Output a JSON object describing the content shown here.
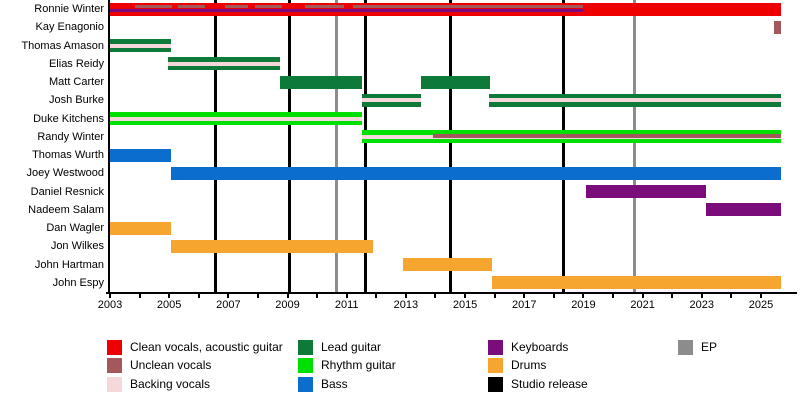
{
  "chart_data": {
    "type": "timeline",
    "description": "Band members timeline chart, roles by color, 2003 to present",
    "x_axis": {
      "start_year": 2003,
      "present_year": 2025.68,
      "tick_step_years": 1,
      "label_years": [
        2003,
        2005,
        2007,
        2009,
        2011,
        2013,
        2015,
        2017,
        2019,
        2021,
        2023,
        2025
      ]
    },
    "colors": {
      "clean": "#ee0000",
      "unclean": "#a3585c",
      "backing": "#f7d8da",
      "lead": "#0d7a3a",
      "rhythm": "#00e000",
      "bass": "#0b6dce",
      "keyboards": "#7a0d7a",
      "drums": "#f6a62f",
      "studio": "#000000",
      "ep": "#8c8c8c"
    },
    "members": [
      {
        "name": "Ronnie Winter",
        "bars": [
          {
            "role": "clean",
            "start": 2003,
            "end": "present",
            "stripes": [
              {
                "role": "keyboards",
                "lane": "middle",
                "segments": [
                  [
                    2003,
                    2019.0
                  ]
                ]
              },
              {
                "role": "unclean",
                "lane": "upper",
                "segments": [
                  [
                    2003.85,
                    2005.1
                  ],
                  [
                    2005.3,
                    2006.2
                  ],
                  [
                    2006.9,
                    2007.65
                  ],
                  [
                    2007.9,
                    2008.8
                  ],
                  [
                    2009.6,
                    2010.9
                  ],
                  [
                    2011.2,
                    2019.0
                  ]
                ]
              }
            ]
          }
        ]
      },
      {
        "name": "Kay Enagonio",
        "bars": [
          {
            "role": "unclean",
            "start": 2025.45,
            "end": "present",
            "stripes": []
          }
        ]
      },
      {
        "name": "Thomas Amason",
        "bars": [
          {
            "role": "lead",
            "start": 2003,
            "end": 2005.05,
            "stripes": [
              {
                "role": "backing",
                "lane": "center",
                "segments": [
                  [
                    2003,
                    2005.05
                  ]
                ]
              }
            ]
          }
        ]
      },
      {
        "name": "Elias Reidy",
        "bars": [
          {
            "role": "lead",
            "start": 2004.95,
            "end": 2008.75,
            "stripes": [
              {
                "role": "backing",
                "lane": "center",
                "segments": [
                  [
                    2004.95,
                    2008.75
                  ]
                ]
              }
            ]
          }
        ]
      },
      {
        "name": "Matt Carter",
        "bars": [
          {
            "role": "lead",
            "start": 2008.75,
            "end": 2011.5,
            "stripes": []
          },
          {
            "role": "lead",
            "start": 2013.5,
            "end": 2015.85,
            "stripes": []
          }
        ]
      },
      {
        "name": "Josh Burke",
        "bars": [
          {
            "role": "lead",
            "start": 2011.5,
            "end": 2013.5,
            "stripes": [
              {
                "role": "backing",
                "lane": "center",
                "segments": [
                  [
                    2011.5,
                    2013.5
                  ]
                ]
              }
            ]
          },
          {
            "role": "lead",
            "start": 2015.8,
            "end": "present",
            "stripes": [
              {
                "role": "backing",
                "lane": "center",
                "segments": [
                  [
                    2015.8,
                    "present"
                  ]
                ]
              }
            ]
          }
        ]
      },
      {
        "name": "Duke Kitchens",
        "bars": [
          {
            "role": "rhythm",
            "start": 2003,
            "end": 2011.5,
            "stripes": [
              {
                "role": "backing",
                "lane": "center",
                "segments": [
                  [
                    2003,
                    2011.5
                  ]
                ]
              }
            ]
          }
        ]
      },
      {
        "name": "Randy Winter",
        "bars": [
          {
            "role": "rhythm",
            "start": 2011.5,
            "end": "present",
            "stripes": [
              {
                "role": "backing",
                "lane": "center",
                "segments": [
                  [
                    2011.5,
                    "present"
                  ]
                ]
              },
              {
                "role": "unclean",
                "lane": "thick",
                "segments": [
                  [
                    2013.9,
                    "present"
                  ]
                ]
              }
            ]
          }
        ]
      },
      {
        "name": "Thomas Wurth",
        "bars": [
          {
            "role": "bass",
            "start": 2003,
            "end": 2005.05,
            "stripes": []
          }
        ]
      },
      {
        "name": "Joey Westwood",
        "bars": [
          {
            "role": "bass",
            "start": 2005.05,
            "end": "present",
            "stripes": []
          }
        ]
      },
      {
        "name": "Daniel Resnick",
        "bars": [
          {
            "role": "keyboards",
            "start": 2019.1,
            "end": 2023.15,
            "stripes": []
          }
        ]
      },
      {
        "name": "Nadeem Salam",
        "bars": [
          {
            "role": "keyboards",
            "start": 2023.15,
            "end": "present",
            "stripes": []
          }
        ]
      },
      {
        "name": "Dan Wagler",
        "bars": [
          {
            "role": "drums",
            "start": 2003,
            "end": 2005.05,
            "stripes": []
          }
        ]
      },
      {
        "name": "Jon Wilkes",
        "bars": [
          {
            "role": "drums",
            "start": 2005.05,
            "end": 2011.9,
            "stripes": []
          }
        ]
      },
      {
        "name": "John Hartman",
        "bars": [
          {
            "role": "drums",
            "start": 2012.9,
            "end": 2015.9,
            "stripes": []
          }
        ]
      },
      {
        "name": "John Espy",
        "bars": [
          {
            "role": "drums",
            "start": 2015.9,
            "end": "present",
            "stripes": []
          }
        ]
      }
    ],
    "releases": {
      "studio_years": [
        2006.55,
        2009.08,
        2011.65,
        2014.52,
        2018.31
      ],
      "ep_years": [
        2010.67,
        2020.71
      ]
    },
    "legend": {
      "columns": [
        {
          "items": [
            {
              "role": "clean",
              "label": "Clean vocals, acoustic guitar"
            },
            {
              "role": "unclean",
              "label": "Unclean vocals"
            },
            {
              "role": "backing",
              "label": "Backing vocals"
            }
          ]
        },
        {
          "items": [
            {
              "role": "lead",
              "label": "Lead guitar"
            },
            {
              "role": "rhythm",
              "label": "Rhythm guitar"
            },
            {
              "role": "bass",
              "label": "Bass"
            }
          ]
        },
        {
          "items": [
            {
              "role": "keyboards",
              "label": "Keyboards"
            },
            {
              "role": "drums",
              "label": "Drums"
            },
            {
              "role": "studio",
              "label": "Studio release"
            }
          ]
        },
        {
          "items": [
            {
              "role": "ep",
              "label": "EP"
            }
          ]
        }
      ]
    }
  }
}
